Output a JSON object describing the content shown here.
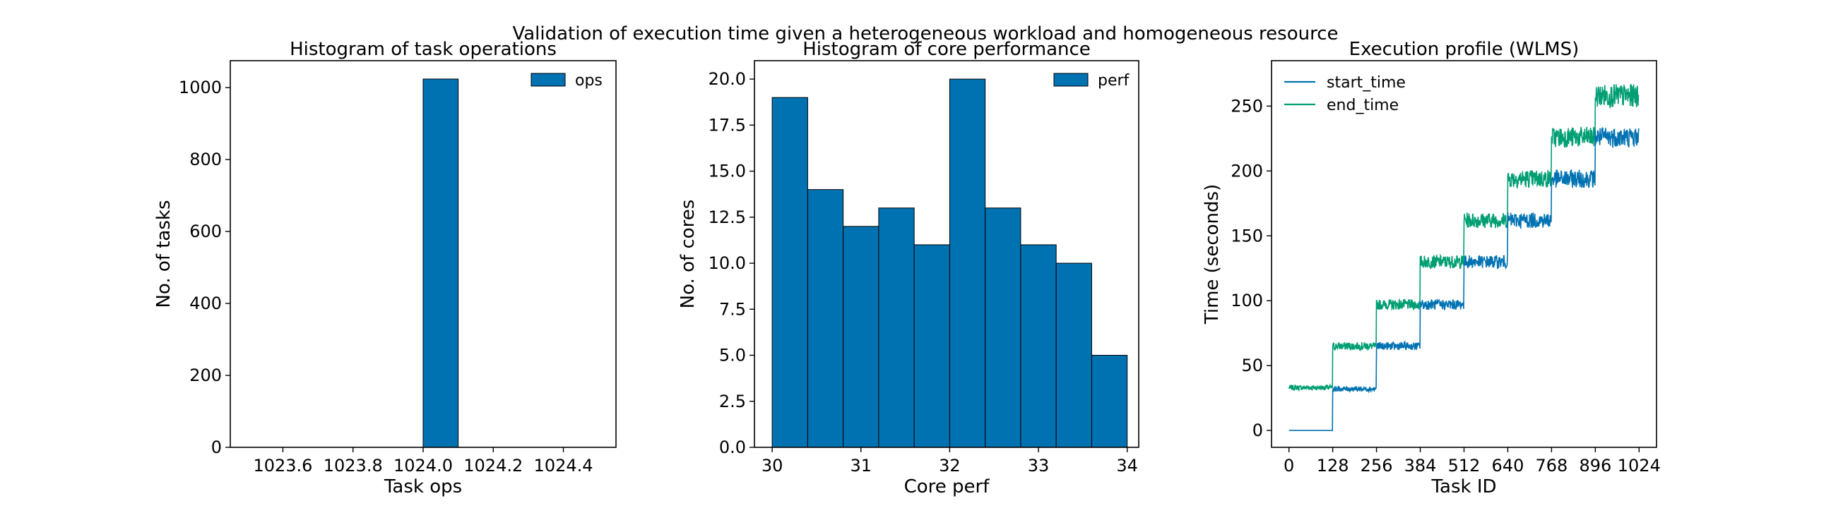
{
  "figure": {
    "suptitle": "Validation of execution time given a heterogeneous workload and homogeneous resource"
  },
  "colors": {
    "bar_fill": "#0072B2",
    "bar_edge": "#000000",
    "start_line": "#0072B2",
    "end_line": "#009E73",
    "axes": "#000000"
  },
  "chart_data": [
    {
      "type": "bar",
      "title": "Histogram of task operations",
      "xlabel": "Task ops",
      "ylabel": "No. of tasks",
      "xlim": [
        1023.45,
        1024.55
      ],
      "ylim": [
        0,
        1075
      ],
      "xticks": [
        1023.6,
        1023.8,
        1024.0,
        1024.2,
        1024.4
      ],
      "xtick_labels": [
        "1023.6",
        "1023.8",
        "1024.0",
        "1024.2",
        "1024.4"
      ],
      "yticks": [
        0,
        200,
        400,
        600,
        800,
        1000
      ],
      "ytick_labels": [
        "0",
        "200",
        "400",
        "600",
        "800",
        "1000"
      ],
      "bins": [
        [
          1024.0,
          1024.1
        ]
      ],
      "values": [
        1024
      ],
      "legend": [
        "ops"
      ],
      "legend_position": "top-right"
    },
    {
      "type": "bar",
      "title": "Histogram of core performance",
      "xlabel": "Core perf",
      "ylabel": "No. of cores",
      "xlim": [
        29.8,
        34.13
      ],
      "ylim": [
        0,
        21
      ],
      "xticks": [
        30,
        31,
        32,
        33,
        34
      ],
      "xtick_labels": [
        "30",
        "31",
        "32",
        "33",
        "34"
      ],
      "yticks": [
        0,
        2.5,
        5,
        7.5,
        10,
        12.5,
        15,
        17.5,
        20
      ],
      "ytick_labels": [
        "0.0",
        "2.5",
        "5.0",
        "7.5",
        "10.0",
        "12.5",
        "15.0",
        "17.5",
        "20.0"
      ],
      "bins": [
        [
          30.0,
          30.4
        ],
        [
          30.4,
          30.8
        ],
        [
          30.8,
          31.2
        ],
        [
          31.2,
          31.6
        ],
        [
          31.6,
          32.0
        ],
        [
          32.0,
          32.4
        ],
        [
          32.4,
          32.8
        ],
        [
          32.8,
          33.2
        ],
        [
          33.2,
          33.6
        ],
        [
          33.6,
          34.0
        ]
      ],
      "values": [
        19,
        14,
        12,
        13,
        11,
        20,
        13,
        11,
        10,
        5
      ],
      "legend": [
        "perf"
      ],
      "legend_position": "top-right"
    },
    {
      "type": "line",
      "title": "Execution profile (WLMS)",
      "xlabel": "Task ID",
      "ylabel": "Time (seconds)",
      "xlim": [
        -51,
        1075
      ],
      "ylim": [
        -13,
        285
      ],
      "xticks": [
        0,
        128,
        256,
        384,
        512,
        640,
        768,
        896,
        1024
      ],
      "xtick_labels": [
        "0",
        "128",
        "256",
        "384",
        "512",
        "640",
        "768",
        "896",
        "1024"
      ],
      "yticks": [
        0,
        50,
        100,
        150,
        200,
        250
      ],
      "ytick_labels": [
        "0",
        "50",
        "100",
        "150",
        "200",
        "250"
      ],
      "n_tasks": 1024,
      "generation": "stepwise in blocks of 128 tasks with per-task noise (values approximate the plotted profile)",
      "series": [
        {
          "name": "start_time",
          "block_levels": [
            0,
            32,
            65,
            97,
            130,
            162,
            194,
            226
          ],
          "noise_amplitude": [
            0,
            2,
            3,
            4,
            5,
            6,
            7,
            8
          ]
        },
        {
          "name": "end_time",
          "block_levels": [
            33,
            65,
            97,
            130,
            162,
            194,
            226,
            258
          ],
          "noise_amplitude": [
            2,
            3,
            4,
            5,
            6,
            7,
            8,
            9
          ]
        }
      ],
      "legend": [
        "start_time",
        "end_time"
      ],
      "legend_position": "top-left"
    }
  ]
}
